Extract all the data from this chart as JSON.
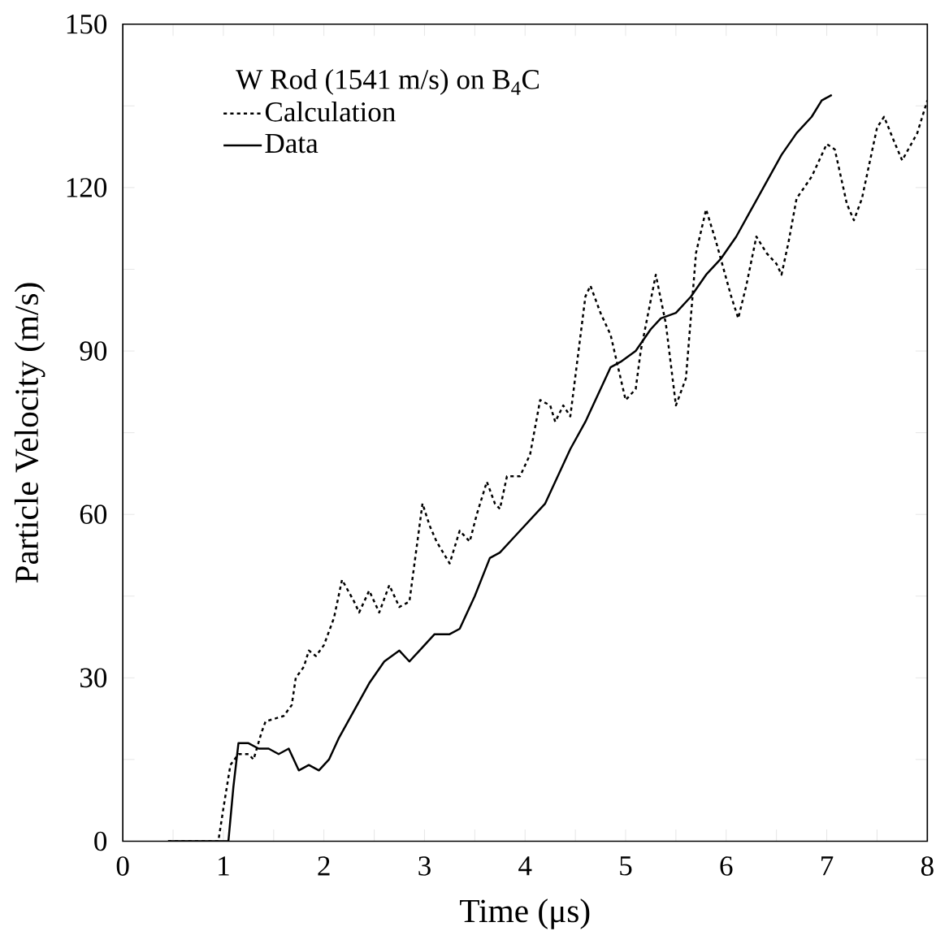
{
  "chart_data": {
    "type": "line",
    "xlabel": "Time (μs)",
    "ylabel": "Particle Velocity (m/s)",
    "legend_title": "W Rod (1541 m/s) on B$_{4}$C",
    "legend": "top left",
    "marker": "none",
    "xlim": [
      0,
      8
    ],
    "ylim": [
      0,
      150
    ],
    "xticks": [
      0,
      {
        "value": 0.5,
        "label": null
      },
      1,
      {
        "value": 1.5,
        "label": null
      },
      2,
      {
        "value": 2.5,
        "label": null
      },
      3,
      {
        "value": 3.5,
        "label": null
      },
      4,
      {
        "value": 4.5,
        "label": null
      },
      5,
      {
        "value": 5.5,
        "label": null
      },
      6,
      {
        "value": 6.5,
        "label": null
      },
      7,
      {
        "value": 7.5,
        "label": null
      },
      8
    ],
    "yticks": [
      0,
      {
        "value": 15,
        "label": null
      },
      30,
      {
        "value": 45,
        "label": null
      },
      60,
      {
        "value": 75,
        "label": null
      },
      90,
      {
        "value": 105,
        "label": null
      },
      120,
      {
        "value": 135,
        "label": null
      },
      150
    ],
    "series": [
      {
        "name": "Calculation",
        "color": "#000000",
        "line_style": "dotted",
        "x": [
          0.45,
          0.95,
          1.0,
          1.07,
          1.15,
          1.25,
          1.3,
          1.38,
          1.42,
          1.6,
          1.68,
          1.72,
          1.8,
          1.85,
          1.92,
          2.0,
          2.1,
          2.18,
          2.3,
          2.35,
          2.45,
          2.55,
          2.65,
          2.75,
          2.85,
          2.98,
          3.05,
          3.12,
          3.25,
          3.35,
          3.45,
          3.52,
          3.62,
          3.7,
          3.75,
          3.82,
          3.95,
          4.05,
          4.15,
          4.25,
          4.3,
          4.38,
          4.45,
          4.6,
          4.65,
          4.75,
          4.85,
          4.95,
          5.0,
          5.1,
          5.15,
          5.3,
          5.4,
          5.5,
          5.6,
          5.7,
          5.8,
          5.9,
          6.05,
          6.12,
          6.2,
          6.3,
          6.4,
          6.5,
          6.55,
          6.62,
          6.7,
          6.85,
          7.0,
          7.08,
          7.2,
          7.27,
          7.35,
          7.5,
          7.57,
          7.68,
          7.75,
          7.9,
          8.0
        ],
        "values": [
          0,
          0,
          6,
          14,
          16,
          16,
          15,
          20,
          22,
          23,
          25,
          30,
          32,
          35,
          34,
          36,
          41,
          48,
          44,
          42,
          46,
          42,
          47,
          43,
          44,
          62,
          58,
          55,
          51,
          57,
          55,
          60,
          66,
          62,
          61,
          67,
          67,
          71,
          81,
          80,
          77,
          80,
          78,
          100,
          102,
          97,
          93,
          85,
          81,
          83,
          90,
          104,
          95,
          80,
          85,
          108,
          116,
          110,
          100,
          96,
          102,
          111,
          108,
          106,
          104,
          110,
          118,
          122,
          128,
          127,
          117,
          114,
          118,
          131,
          133,
          128,
          125,
          130,
          136
        ]
      },
      {
        "name": "Data",
        "color": "#000000",
        "line_style": "solid",
        "x": [
          0.45,
          1.05,
          1.1,
          1.15,
          1.25,
          1.35,
          1.45,
          1.55,
          1.65,
          1.75,
          1.85,
          1.95,
          2.05,
          2.15,
          2.3,
          2.45,
          2.6,
          2.75,
          2.85,
          2.95,
          3.1,
          3.25,
          3.35,
          3.5,
          3.65,
          3.75,
          3.9,
          4.1,
          4.2,
          4.3,
          4.45,
          4.6,
          4.75,
          4.85,
          4.95,
          5.1,
          5.25,
          5.35,
          5.5,
          5.65,
          5.8,
          5.95,
          6.1,
          6.25,
          6.4,
          6.55,
          6.7,
          6.85,
          6.95,
          7.05
        ],
        "values": [
          0,
          0,
          10,
          18,
          18,
          17,
          17,
          16,
          17,
          13,
          14,
          13,
          15,
          19,
          24,
          29,
          33,
          35,
          33,
          35,
          38,
          38,
          39,
          45,
          52,
          53,
          56,
          60,
          62,
          66,
          72,
          77,
          83,
          87,
          88,
          90,
          94,
          96,
          97,
          100,
          104,
          107,
          111,
          116,
          121,
          126,
          130,
          133,
          136,
          137
        ]
      }
    ]
  }
}
